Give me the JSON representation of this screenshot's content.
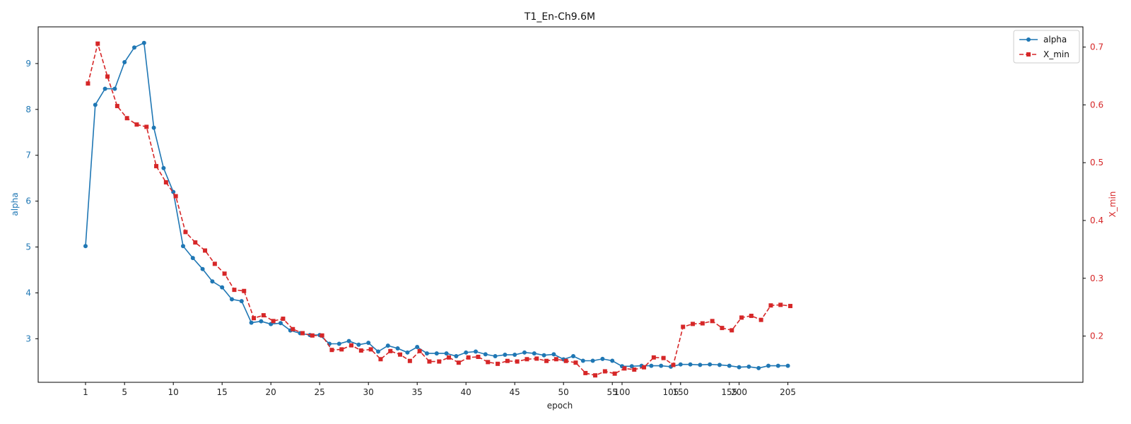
{
  "chart_data": {
    "type": "line",
    "title": "T1_En-Ch9.6M",
    "xlabel": "epoch",
    "y_left_label": "alpha",
    "y_right_label": "X_min",
    "legend_position": "top-right",
    "grid": false,
    "x_ticks": [
      "1",
      "5",
      "10",
      "15",
      "20",
      "25",
      "30",
      "35",
      "40",
      "45",
      "50",
      "55",
      "100",
      "105",
      "150",
      "155",
      "200",
      "205"
    ],
    "x_categories": [
      1,
      2,
      3,
      4,
      5,
      6,
      7,
      8,
      9,
      10,
      11,
      12,
      13,
      14,
      15,
      16,
      17,
      18,
      19,
      20,
      21,
      22,
      23,
      24,
      25,
      26,
      27,
      28,
      29,
      30,
      31,
      32,
      33,
      34,
      35,
      36,
      37,
      38,
      39,
      40,
      41,
      42,
      43,
      44,
      45,
      46,
      47,
      48,
      49,
      50,
      51,
      52,
      53,
      54,
      55,
      100,
      101,
      102,
      103,
      104,
      105,
      150,
      151,
      152,
      153,
      154,
      155,
      200,
      201,
      202,
      203,
      204,
      205
    ],
    "left_axis": {
      "ticks": [
        3,
        4,
        5,
        6,
        7,
        8,
        9
      ],
      "range": [
        2.05,
        9.8
      ],
      "color": "#1f77b4"
    },
    "right_axis": {
      "ticks": [
        0.2,
        0.3,
        0.4,
        0.5,
        0.6,
        0.7
      ],
      "range": [
        0.12,
        0.735
      ],
      "color": "#d62728"
    },
    "series": [
      {
        "name": "alpha",
        "axis": "left",
        "color": "#1f77b4",
        "style": "solid",
        "marker": "circle",
        "x_offset": 0,
        "values": [
          5.02,
          8.1,
          8.45,
          8.45,
          9.03,
          9.35,
          9.45,
          7.6,
          6.72,
          6.2,
          5.02,
          4.76,
          4.52,
          4.25,
          4.12,
          3.86,
          3.82,
          3.35,
          3.38,
          3.32,
          3.34,
          3.18,
          3.12,
          3.08,
          3.08,
          2.89,
          2.89,
          2.95,
          2.87,
          2.91,
          2.72,
          2.85,
          2.79,
          2.7,
          2.82,
          2.68,
          2.68,
          2.68,
          2.62,
          2.7,
          2.72,
          2.66,
          2.62,
          2.65,
          2.65,
          2.7,
          2.68,
          2.64,
          2.66,
          2.55,
          2.62,
          2.52,
          2.52,
          2.56,
          2.52,
          2.4,
          2.4,
          2.41,
          2.41,
          2.41,
          2.39,
          2.44,
          2.44,
          2.43,
          2.44,
          2.43,
          2.41,
          2.38,
          2.39,
          2.36,
          2.41,
          2.41,
          2.41
        ]
      },
      {
        "name": "X_min",
        "axis": "right",
        "color": "#d62728",
        "style": "dashed",
        "marker": "square",
        "x_offset": 0.25,
        "values": [
          0.637,
          0.706,
          0.649,
          0.598,
          0.577,
          0.566,
          0.562,
          0.494,
          0.466,
          0.442,
          0.38,
          0.362,
          0.348,
          0.325,
          0.308,
          0.28,
          0.278,
          0.231,
          0.236,
          0.226,
          0.23,
          0.212,
          0.205,
          0.201,
          0.201,
          0.176,
          0.177,
          0.184,
          0.175,
          0.177,
          0.16,
          0.174,
          0.168,
          0.157,
          0.174,
          0.156,
          0.156,
          0.163,
          0.154,
          0.163,
          0.164,
          0.155,
          0.152,
          0.157,
          0.156,
          0.16,
          0.161,
          0.157,
          0.16,
          0.157,
          0.154,
          0.136,
          0.132,
          0.139,
          0.135,
          0.144,
          0.142,
          0.146,
          0.163,
          0.162,
          0.15,
          0.216,
          0.221,
          0.222,
          0.226,
          0.214,
          0.21,
          0.232,
          0.235,
          0.228,
          0.253,
          0.254,
          0.252
        ]
      }
    ]
  }
}
